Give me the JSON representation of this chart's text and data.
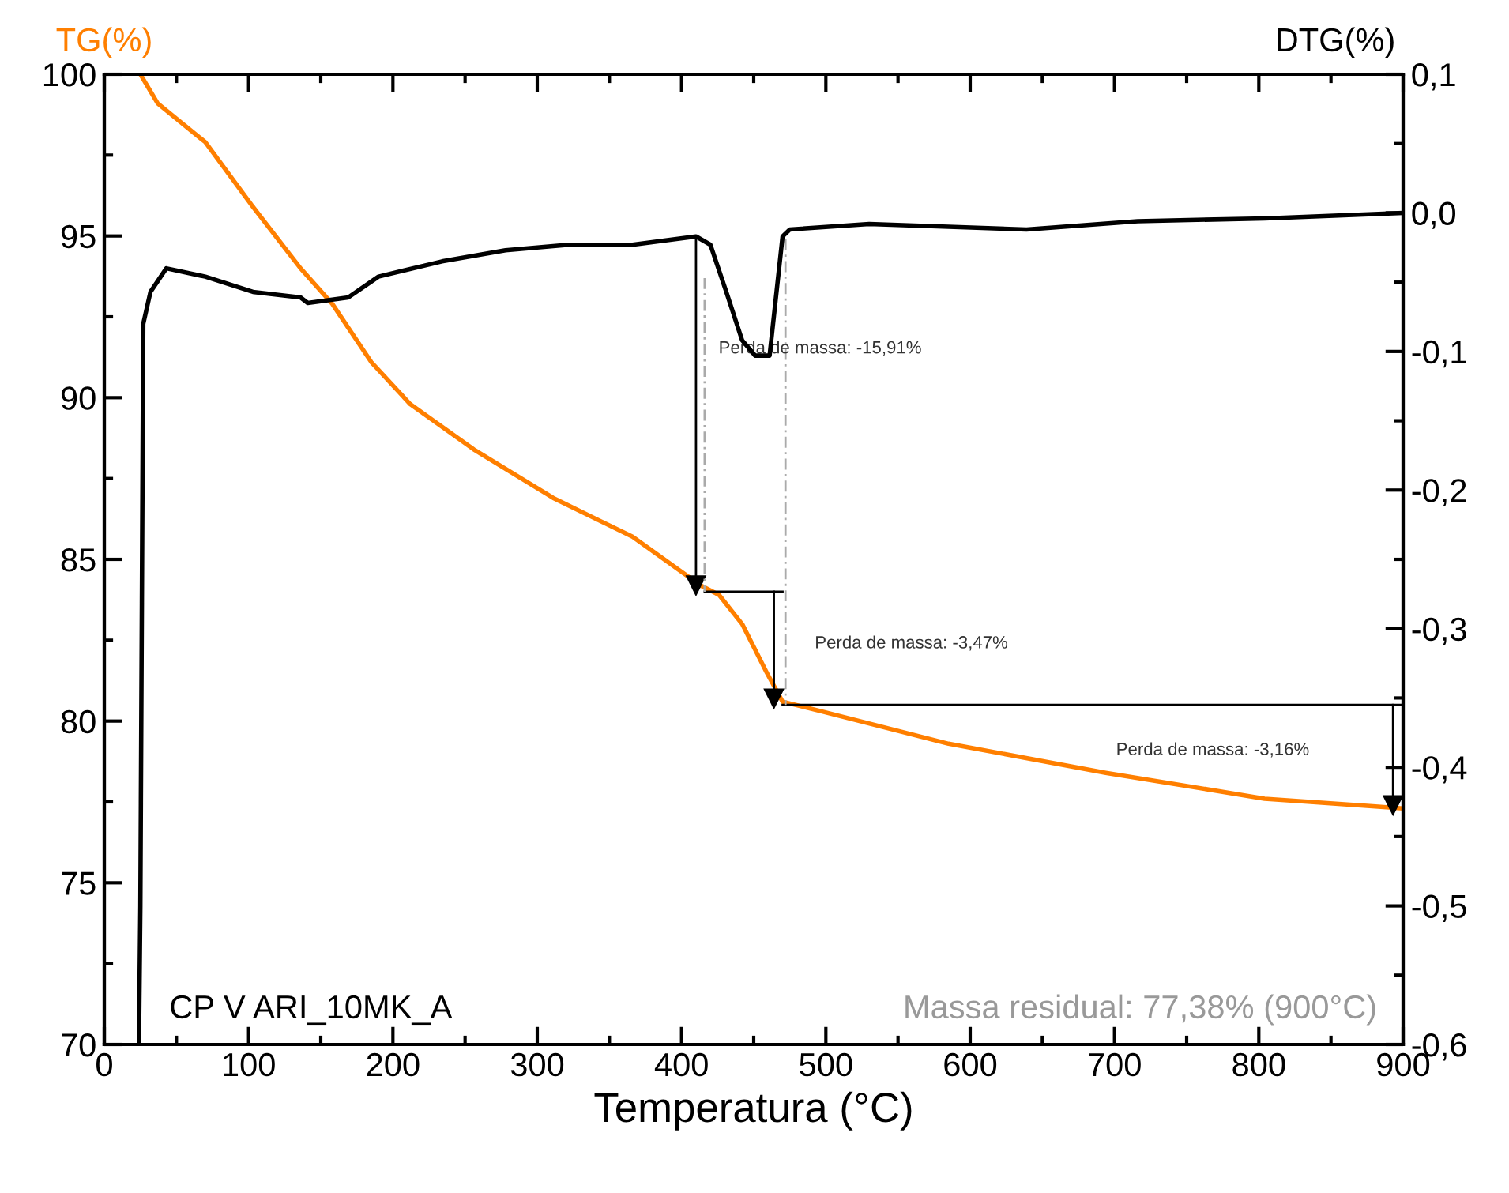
{
  "chart_data": {
    "type": "line",
    "xlabel": "Temperatura (°C)",
    "ylabel": "TG(%)",
    "y2label": "DTG(%)",
    "xlim": [
      0,
      900
    ],
    "xticks": [
      0,
      100,
      200,
      300,
      400,
      500,
      600,
      700,
      800,
      900
    ],
    "ylim": [
      70,
      100
    ],
    "yticks": [
      70,
      75,
      80,
      85,
      90,
      95,
      100
    ],
    "y2lim": [
      -0.6,
      0.1
    ],
    "y2ticks": [
      {
        "value": -0.6,
        "label": "-0,6"
      },
      {
        "value": -0.5,
        "label": "-0,5"
      },
      {
        "value": -0.4,
        "label": "-0,4"
      },
      {
        "value": -0.3,
        "label": "-0,3"
      },
      {
        "value": -0.2,
        "label": "-0,2"
      },
      {
        "value": -0.1,
        "label": "-0,1"
      },
      {
        "value": 0.0,
        "label": "0,0"
      },
      {
        "value": 0.1,
        "label": "0,1"
      }
    ],
    "grid": false,
    "legend": false,
    "series": [
      {
        "color": "#ff7f00",
        "x": [
          25,
          37,
          70,
          103,
          136,
          158,
          185,
          212,
          256,
          311,
          366,
          413,
          426,
          442,
          459,
          470,
          497,
          585,
          694,
          804,
          900
        ],
        "values": [
          100,
          99.1,
          97.9,
          95.9,
          94.0,
          92.9,
          91.1,
          89.8,
          88.4,
          86.9,
          85.7,
          84.2,
          83.9,
          83.0,
          81.5,
          80.6,
          80.3,
          79.3,
          78.4,
          77.6,
          77.3
        ]
      },
      {
        "color": "#000000",
        "axis": "y2",
        "x": [
          24,
          25,
          27,
          32,
          43,
          70,
          103,
          136,
          141,
          169,
          190,
          234,
          278,
          322,
          366,
          410,
          420,
          431,
          442,
          451,
          461,
          470,
          475,
          530,
          639,
          716,
          804,
          900
        ],
        "values": [
          -0.6,
          -0.5,
          -0.08,
          -0.057,
          -0.04,
          -0.046,
          -0.057,
          -0.061,
          -0.065,
          -0.061,
          -0.046,
          -0.035,
          -0.027,
          -0.023,
          -0.023,
          -0.017,
          -0.023,
          -0.057,
          -0.092,
          -0.103,
          -0.103,
          -0.017,
          -0.012,
          -0.008,
          -0.012,
          -0.006,
          -0.004,
          0.0
        ]
      },
      {
        "color": "#000000",
        "x": [
          410,
          410
        ],
        "values": [
          94.9,
          84.2
        ],
        "marker": "triangle"
      },
      {
        "color": "#000000",
        "x": [
          464,
          464
        ],
        "values": [
          84.0,
          80.7
        ],
        "marker": "triangle"
      },
      {
        "color": "#000000",
        "x": [
          893,
          893
        ],
        "values": [
          80.5,
          77.4
        ],
        "marker": "triangle"
      },
      {
        "color": "#000000",
        "x": [
          416,
          470
        ],
        "values": [
          84.0,
          84.0
        ]
      },
      {
        "color": "#000000",
        "x": [
          470,
          900
        ],
        "values": [
          80.5,
          80.5
        ]
      },
      {
        "color": "#aaaaaa",
        "x": [
          416,
          416
        ],
        "values": [
          93.7,
          84.0
        ],
        "line_style": "dashed"
      },
      {
        "color": "#aaaaaa",
        "x": [
          472,
          472
        ],
        "values": [
          94.9,
          80.5
        ],
        "line_style": "dashed"
      }
    ],
    "annotations": [
      "Perda de massa: -15,91%",
      "Perda de massa: -3,47%",
      "Perda de massa: -3,16%",
      "CP V ARI_10MK_A",
      "Massa residual: 77,38% (900°C)"
    ]
  }
}
